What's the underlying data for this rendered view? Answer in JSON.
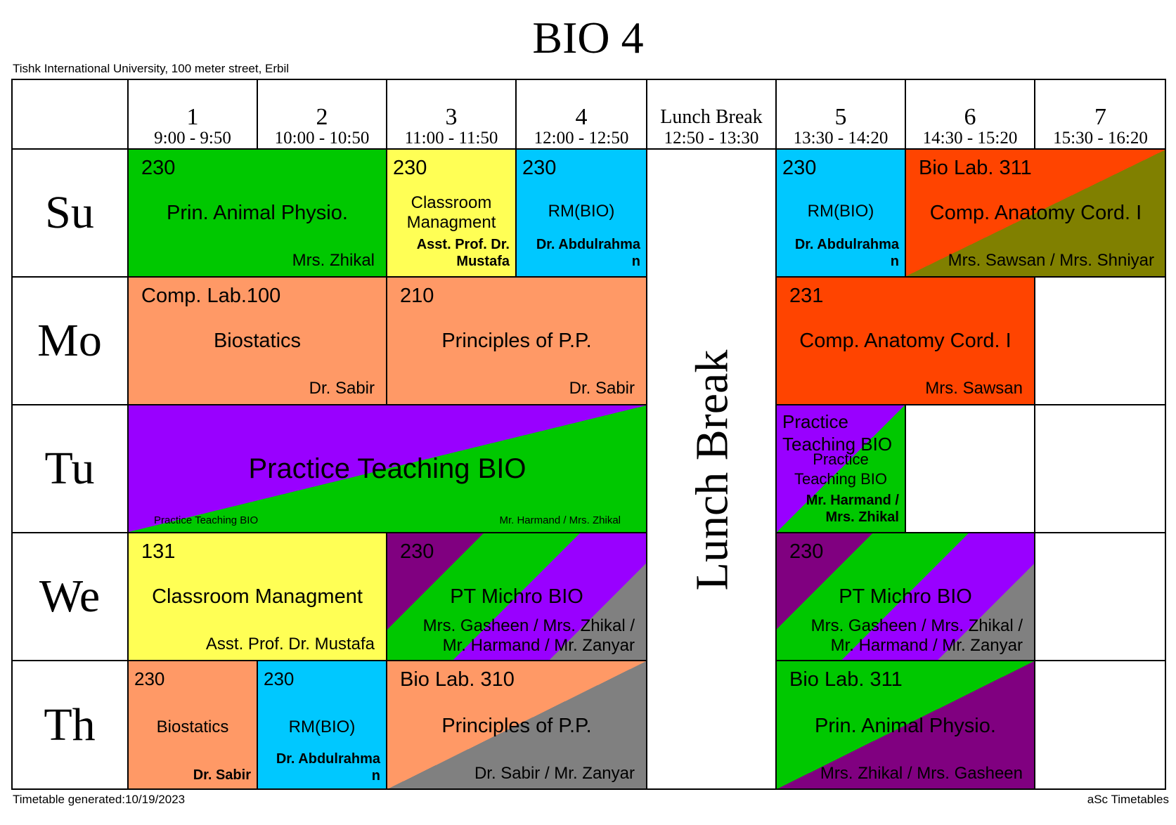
{
  "title": "BIO 4",
  "address": "Tishk International University, 100 meter street, Erbil",
  "footer": {
    "generated": "Timetable generated:10/19/2023",
    "brand": "aSc Timetables"
  },
  "periods": [
    {
      "num": "1",
      "time": "9:00 - 9:50"
    },
    {
      "num": "2",
      "time": "10:00 - 10:50"
    },
    {
      "num": "3",
      "time": "11:00 - 11:50"
    },
    {
      "num": "4",
      "time": "12:00 - 12:50"
    },
    {
      "num": "Lunch Break",
      "time": "12:50 - 13:30"
    },
    {
      "num": "5",
      "time": "13:30 - 14:20"
    },
    {
      "num": "6",
      "time": "14:30 - 15:20"
    },
    {
      "num": "7",
      "time": "15:30 - 16:20"
    }
  ],
  "days": [
    "Su",
    "Mo",
    "Tu",
    "We",
    "Th"
  ],
  "lunch_label": "Lunch Break",
  "colors": {
    "green": "#00c800",
    "yellow": "#ffff55",
    "cyan": "#00c8ff",
    "orange_red": "#ff4400",
    "olive": "#808000",
    "salmon": "#ff9966",
    "violet": "#9900ff",
    "purple": "#800080",
    "gray": "#808080"
  },
  "lessons": {
    "su_1": {
      "room": "230",
      "subject": "Prin. Animal Physio.",
      "teacher": "Mrs. Zhikal"
    },
    "su_3": {
      "room": "230",
      "subject_1": "Classroom",
      "subject_2": "Managment",
      "teacher_1": "Asst. Prof. Dr.",
      "teacher_2": "Mustafa"
    },
    "su_4": {
      "room": "230",
      "subject": "RM(BIO)",
      "teacher_1": "Dr. Abdulrahma",
      "teacher_2": "n"
    },
    "su_5": {
      "room": "230",
      "subject": "RM(BIO)",
      "teacher_1": "Dr. Abdulrahma",
      "teacher_2": "n"
    },
    "su_6": {
      "room": "Bio Lab. 311",
      "subject": "Comp. Anatomy Cord. I",
      "teacher": "Mrs. Sawsan / Mrs. Shniyar"
    },
    "mo_1": {
      "room": "Comp. Lab.100",
      "subject": "Biostatics",
      "teacher": "Dr. Sabir"
    },
    "mo_3": {
      "room": "210",
      "subject": "Principles of P.P.",
      "teacher": "Dr. Sabir"
    },
    "mo_5": {
      "room": "231",
      "subject": "Comp. Anatomy Cord. I",
      "teacher": "Mrs. Sawsan"
    },
    "tu_1": {
      "subject": "Practice Teaching BIO",
      "note_left": "Practice Teaching BIO",
      "note_right": "Mr. Harmand / Mrs. Zhikal"
    },
    "tu_5": {
      "subject_a1": "Practice",
      "subject_a2": "Teaching BIO",
      "subject_b1": "Practice",
      "subject_b2": "Teaching BIO",
      "teacher_1": "Mr. Harmand /",
      "teacher_2": "Mrs. Zhikal"
    },
    "we_1": {
      "room": "131",
      "subject": "Classroom Managment",
      "teacher": "Asst. Prof. Dr. Mustafa"
    },
    "we_3": {
      "room": "230",
      "subject": "PT Michro BIO",
      "teacher_1": "Mrs. Gasheen / Mrs. Zhikal /",
      "teacher_2": "Mr. Harmand / Mr. Zanyar"
    },
    "we_5": {
      "room": "230",
      "subject": "PT Michro BIO",
      "teacher_1": "Mrs. Gasheen / Mrs. Zhikal /",
      "teacher_2": "Mr. Harmand / Mr. Zanyar"
    },
    "th_1": {
      "room": "230",
      "subject": "Biostatics",
      "teacher": "Dr. Sabir"
    },
    "th_2": {
      "room": "230",
      "subject": "RM(BIO)",
      "teacher_1": "Dr. Abdulrahma",
      "teacher_2": "n"
    },
    "th_3": {
      "room": "Bio Lab. 310",
      "subject": "Principles of P.P.",
      "teacher": "Dr. Sabir / Mr. Zanyar"
    },
    "th_5": {
      "room": "Bio Lab. 311",
      "subject": "Prin. Animal Physio.",
      "teacher": "Mrs. Zhikal / Mrs. Gasheen"
    }
  }
}
